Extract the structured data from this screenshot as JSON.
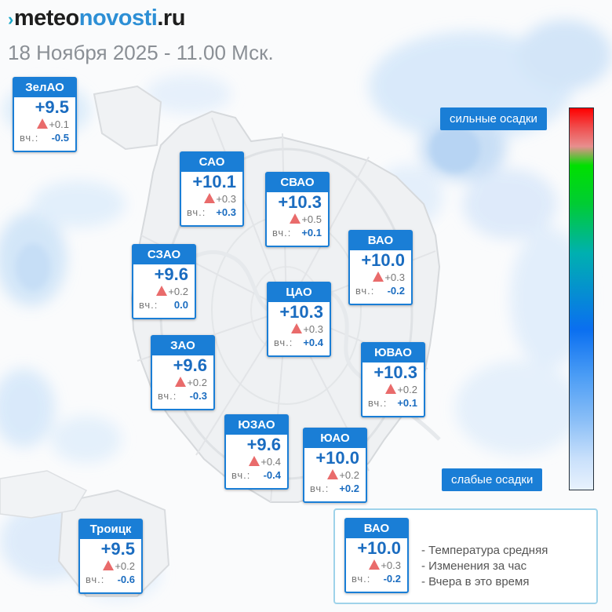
{
  "header": {
    "logo_mark": "›",
    "logo_part1": "meteo",
    "logo_part2": "novosti",
    "logo_part3": ".ru",
    "date_line": "18 Ноября 2025 - 11.00 Мск."
  },
  "colors": {
    "accent": "#1a7ed6",
    "temperature_text": "#1a6cc0",
    "increase_triangle": "#e96b6b",
    "logo_blue": "#2d8fd5",
    "precip_blue": "#c3dff7"
  },
  "districts": [
    {
      "name": "ЗелАО",
      "temp": "+9.5",
      "change": "+0.1",
      "yesterday_label": "вч.:",
      "yesterday": "-0.5"
    },
    {
      "name": "САО",
      "temp": "+10.1",
      "change": "+0.3",
      "yesterday_label": "вч.:",
      "yesterday": "+0.3"
    },
    {
      "name": "СВАО",
      "temp": "+10.3",
      "change": "+0.5",
      "yesterday_label": "вч.:",
      "yesterday": "+0.1"
    },
    {
      "name": "ВАО",
      "temp": "+10.0",
      "change": "+0.3",
      "yesterday_label": "вч.:",
      "yesterday": "-0.2"
    },
    {
      "name": "СЗАО",
      "temp": "+9.6",
      "change": "+0.2",
      "yesterday_label": "вч.:",
      "yesterday": "0.0"
    },
    {
      "name": "ЦАО",
      "temp": "+10.3",
      "change": "+0.3",
      "yesterday_label": "вч.:",
      "yesterday": "+0.4"
    },
    {
      "name": "ЗАО",
      "temp": "+9.6",
      "change": "+0.2",
      "yesterday_label": "вч.:",
      "yesterday": "-0.3"
    },
    {
      "name": "ЮВАО",
      "temp": "+10.3",
      "change": "+0.2",
      "yesterday_label": "вч.:",
      "yesterday": "+0.1"
    },
    {
      "name": "ЮЗАО",
      "temp": "+9.6",
      "change": "+0.4",
      "yesterday_label": "вч.:",
      "yesterday": "-0.4"
    },
    {
      "name": "ЮАО",
      "temp": "+10.0",
      "change": "+0.2",
      "yesterday_label": "вч.:",
      "yesterday": "+0.2"
    },
    {
      "name": "Троицк",
      "temp": "+9.5",
      "change": "+0.2",
      "yesterday_label": "вч.:",
      "yesterday": "-0.6"
    }
  ],
  "precip_scale": {
    "top_label": "сильные осадки",
    "bottom_label": "слабые осадки"
  },
  "legend": {
    "sample": {
      "name": "ВАО",
      "temp": "+10.0",
      "change": "+0.3",
      "yesterday_label": "вч.:",
      "yesterday": "-0.2"
    },
    "line1": "- Температура средняя",
    "line2": "- Изменения за час",
    "line3": "- Вчера в это время"
  }
}
